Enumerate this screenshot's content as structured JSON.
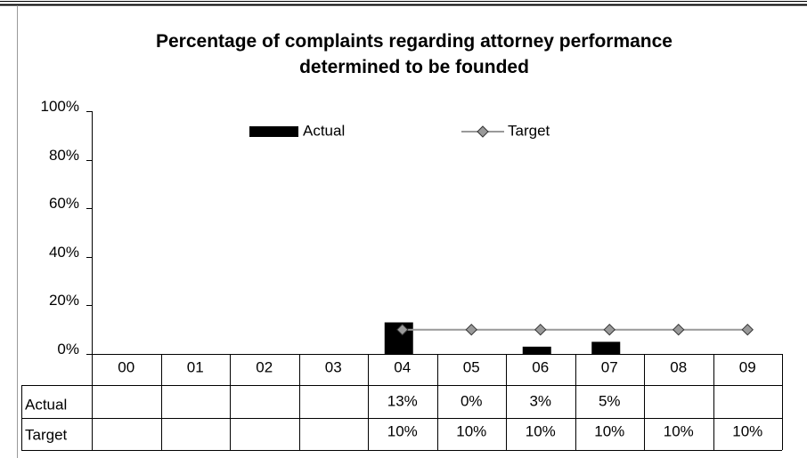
{
  "chart_data": {
    "type": "bar_line",
    "title": "Percentage of complaints regarding attorney performance determined to be founded",
    "categories": [
      "00",
      "01",
      "02",
      "03",
      "04",
      "05",
      "06",
      "07",
      "08",
      "09"
    ],
    "series": [
      {
        "name": "Actual",
        "type": "bar",
        "color": "#000000",
        "values": [
          null,
          null,
          null,
          null,
          13,
          0,
          3,
          5,
          null,
          null
        ],
        "value_labels": [
          null,
          null,
          null,
          null,
          "13%",
          "0%",
          "3%",
          "5%",
          null,
          null
        ]
      },
      {
        "name": "Target",
        "type": "line",
        "color": "#999999",
        "marker": "diamond",
        "values": [
          null,
          null,
          null,
          null,
          10,
          10,
          10,
          10,
          10,
          10
        ],
        "value_labels": [
          null,
          null,
          null,
          null,
          "10%",
          "10%",
          "10%",
          "10%",
          "10%",
          "10%"
        ]
      }
    ],
    "ylim": [
      0,
      100
    ],
    "yticks": [
      {
        "value": 0,
        "label": "0%"
      },
      {
        "value": 20,
        "label": "20%"
      },
      {
        "value": 40,
        "label": "40%"
      },
      {
        "value": 60,
        "label": "60%"
      },
      {
        "value": 80,
        "label": "80%"
      },
      {
        "value": 100,
        "label": "100%"
      }
    ],
    "legend": "top",
    "data_table": true
  }
}
